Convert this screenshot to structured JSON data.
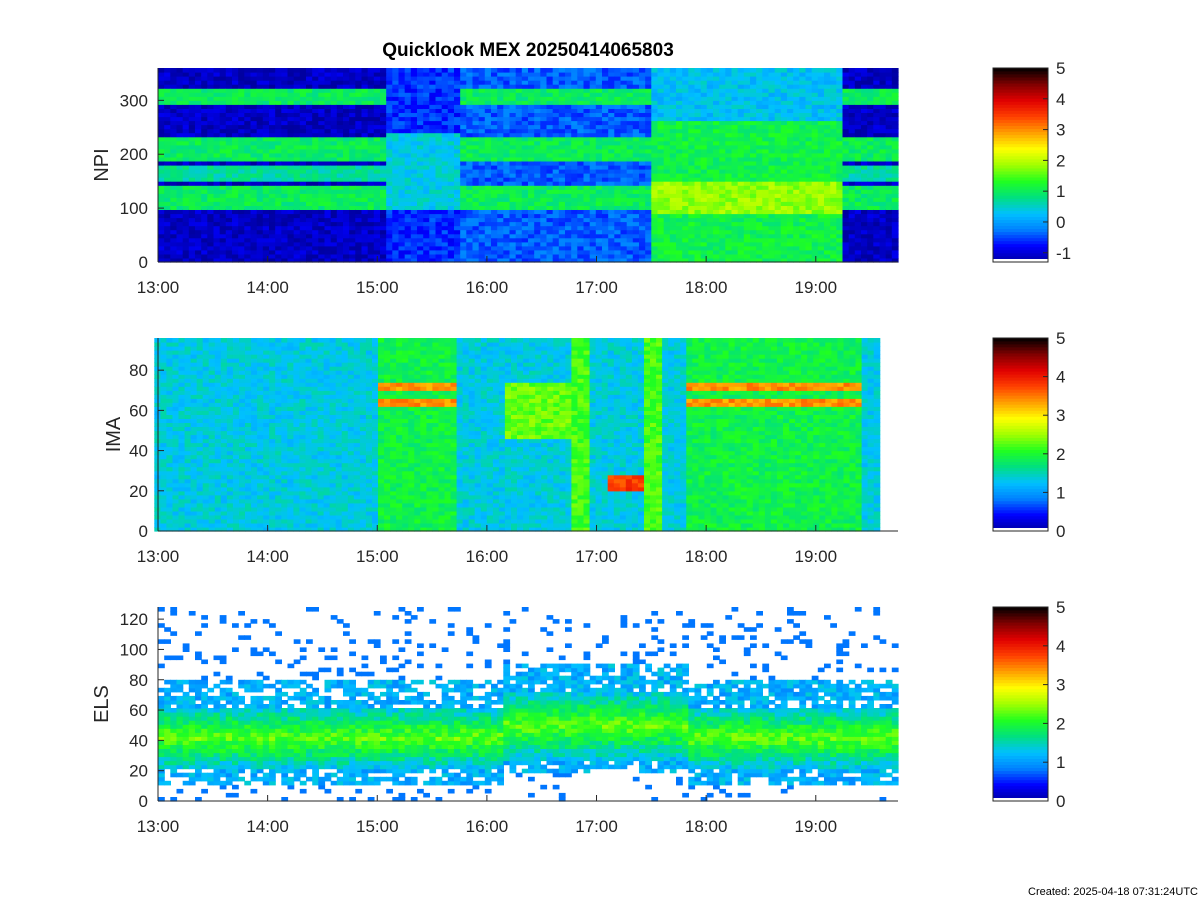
{
  "title": "Quicklook MEX 20250414065803",
  "footer": "Created: 2025-04-18 07:31:24UTC",
  "colormap": [
    "#0000a0",
    "#0000ff",
    "#0080ff",
    "#00c0ff",
    "#00e080",
    "#20ff20",
    "#a0ff00",
    "#ffff00",
    "#ffa000",
    "#ff4000",
    "#e00000",
    "#800000",
    "#000000"
  ],
  "chart_data": [
    {
      "type": "heatmap",
      "ylabel": "NPI",
      "xlim": [
        "13:00",
        "19:45"
      ],
      "ylim": [
        0,
        360
      ],
      "xticks": [
        "13:00",
        "14:00",
        "15:00",
        "16:00",
        "17:00",
        "18:00",
        "19:00"
      ],
      "yticks": [
        "0",
        "100",
        "200",
        "300"
      ],
      "colorbar": {
        "range": [
          -1.3,
          5
        ],
        "ticks": [
          "-1",
          "0",
          "1",
          "2",
          "3",
          "4",
          "5"
        ]
      },
      "description_segments": [
        {
          "from": "13:00",
          "to": "15:05",
          "state": "banded"
        },
        {
          "from": "15:05",
          "to": "17:30",
          "state": "mixed"
        },
        {
          "from": "17:30",
          "to": "19:15",
          "state": "enhanced"
        },
        {
          "from": "19:15",
          "to": "19:45",
          "state": "banded"
        }
      ]
    },
    {
      "type": "heatmap",
      "ylabel": "IMA",
      "xlim": [
        "13:00",
        "19:45"
      ],
      "ylim": [
        0,
        96
      ],
      "xticks": [
        "13:00",
        "14:00",
        "15:00",
        "16:00",
        "17:00",
        "18:00",
        "19:00"
      ],
      "yticks": [
        "0",
        "20",
        "40",
        "60",
        "80"
      ],
      "colorbar": {
        "range": [
          0,
          5
        ],
        "ticks": [
          "0",
          "1",
          "2",
          "3",
          "4",
          "5"
        ]
      },
      "bands": [
        {
          "from": "15:00",
          "to": "15:45",
          "y": [
            64,
            72
          ],
          "level": 3.4
        },
        {
          "from": "17:05",
          "to": "17:25",
          "y": [
            20,
            28
          ],
          "level": 3.8
        },
        {
          "from": "17:48",
          "to": "19:25",
          "y": [
            64,
            72
          ],
          "level": 3.4
        }
      ]
    },
    {
      "type": "heatmap",
      "ylabel": "ELS",
      "xlim": [
        "13:00",
        "19:45"
      ],
      "ylim": [
        0,
        128
      ],
      "xticks": [
        "13:00",
        "14:00",
        "15:00",
        "16:00",
        "17:00",
        "18:00",
        "19:00"
      ],
      "yticks": [
        "0",
        "20",
        "40",
        "60",
        "80",
        "100",
        "120"
      ],
      "colorbar": {
        "range": [
          0,
          5
        ],
        "ticks": [
          "0",
          "1",
          "2",
          "3",
          "4",
          "5"
        ]
      },
      "core_band": {
        "y": [
          25,
          60
        ],
        "level": 2.1
      }
    }
  ]
}
